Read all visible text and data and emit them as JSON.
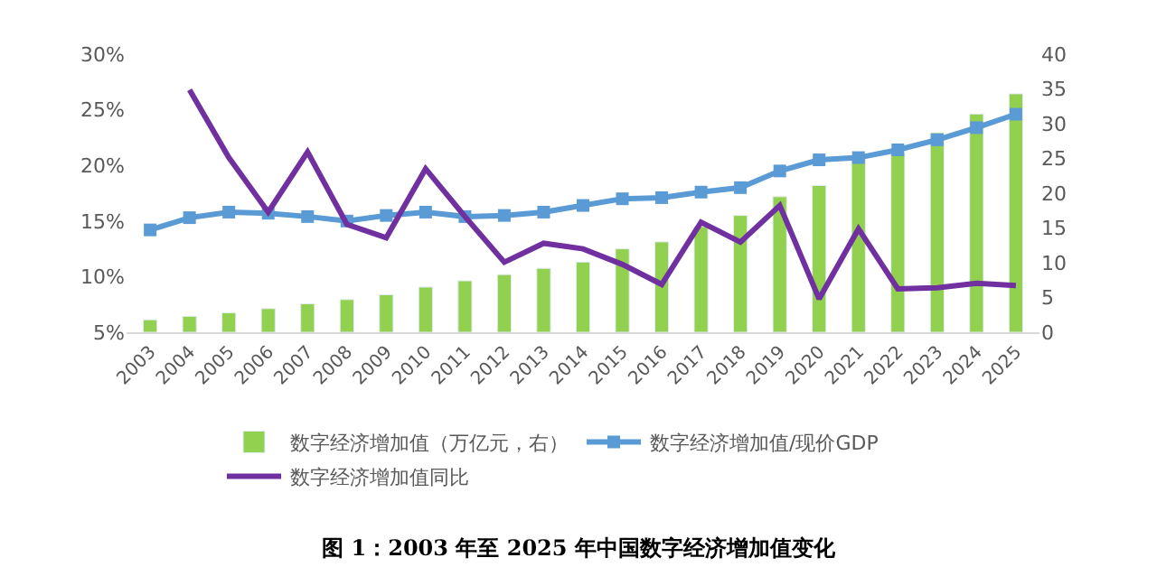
{
  "chart_data": {
    "type": "bar",
    "title": "图 1：2003 年至 2025 年中国数字经济增加值变化",
    "categories": [
      "2003",
      "2004",
      "2005",
      "2006",
      "2007",
      "2008",
      "2009",
      "2010",
      "2011",
      "2012",
      "2013",
      "2014",
      "2015",
      "2016",
      "2017",
      "2018",
      "2019",
      "2020",
      "2021",
      "2022",
      "2023",
      "2024",
      "2025"
    ],
    "series": [
      {
        "name": "数字经济增加值（万亿元，右）",
        "axis": "y2",
        "color": "#92d050",
        "values": [
          1.8,
          2.3,
          2.8,
          3.4,
          4.1,
          4.7,
          5.4,
          6.5,
          7.4,
          8.3,
          9.2,
          10.1,
          12.0,
          13.0,
          15.2,
          16.8,
          19.5,
          21.1,
          25.0,
          25.8,
          28.7,
          31.4,
          34.3
        ]
      },
      {
        "name": "数字经济增加值/现价GDP",
        "type": "line",
        "marker": "square",
        "color": "#5b9bd5",
        "values": [
          14.2,
          15.3,
          15.8,
          15.7,
          15.4,
          15.0,
          15.5,
          15.8,
          15.4,
          15.5,
          15.8,
          16.4,
          17.0,
          17.1,
          17.6,
          18.0,
          19.5,
          20.5,
          20.7,
          21.4,
          22.3,
          23.4,
          24.6
        ]
      },
      {
        "name": "数字经济增加值同比",
        "type": "line",
        "marker": "none",
        "color": "#7030a0",
        "values": [
          null,
          26.8,
          20.7,
          15.8,
          21.2,
          14.7,
          13.5,
          19.7,
          15.4,
          11.3,
          13.0,
          12.5,
          11.1,
          9.3,
          14.9,
          13.1,
          16.4,
          8.0,
          14.3,
          8.9,
          9.0,
          9.4,
          9.2
        ]
      }
    ],
    "ylim": [
      5,
      30
    ],
    "yticks": [
      {
        "value": 5,
        "label": "5%"
      },
      {
        "value": 10,
        "label": "10%"
      },
      {
        "value": 15,
        "label": "15%"
      },
      {
        "value": 20,
        "label": "20%"
      },
      {
        "value": 25,
        "label": "25%"
      },
      {
        "value": 30,
        "label": "30%"
      }
    ],
    "y2lim": [
      0,
      40
    ],
    "y2ticks": [
      0,
      5,
      10,
      15,
      20,
      25,
      30,
      35,
      40
    ],
    "legend": "bottom"
  }
}
